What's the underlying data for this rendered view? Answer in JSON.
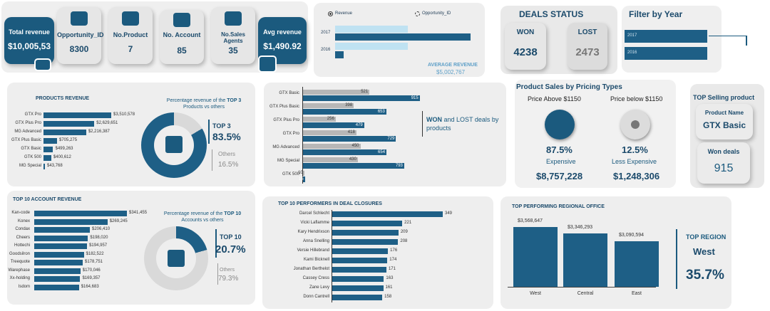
{
  "kpis": {
    "total_revenue": {
      "label": "Total revenue",
      "value": "$10,005,53"
    },
    "opportunity_id": {
      "label": "Opportunity_ID",
      "value": "8300"
    },
    "no_product": {
      "label": "No.Product",
      "value": "7"
    },
    "no_account": {
      "label": "No. Account",
      "value": "85"
    },
    "no_sales_agents": {
      "label": "No.Sales Agents",
      "value": "35"
    },
    "avg_revenue": {
      "label": "Avg  revenue",
      "value": "$1,490.92"
    }
  },
  "year_chart": {
    "legend_revenue": "Revenue",
    "legend_opportunity": "Opportunity_ID",
    "years": [
      "2017",
      "2016"
    ],
    "avg_label": "AVERAGE REVENUE",
    "avg_value": "$5,002,767"
  },
  "deals_status": {
    "title": "DEALS STATUS",
    "won_label": "WON",
    "won_value": "4238",
    "lost_label": "LOST",
    "lost_value": "2473"
  },
  "filter": {
    "title": "Filter by Year",
    "items": [
      "2017",
      "2016"
    ]
  },
  "products_revenue": {
    "title": "PRODUCTS REVENUE",
    "rows": [
      {
        "name": "GTX Pro",
        "value": "$3,510,578",
        "frac": 1.0
      },
      {
        "name": "GTX Plus Pro",
        "value": "$2,629,651",
        "frac": 0.75
      },
      {
        "name": "MG Advanced",
        "value": "$2,216,387",
        "frac": 0.63
      },
      {
        "name": "GTX Plus Basic",
        "value": "$705,275",
        "frac": 0.2
      },
      {
        "name": "GTX Basic",
        "value": "$499,263",
        "frac": 0.142
      },
      {
        "name": "GTK 500",
        "value": "$400,612",
        "frac": 0.114
      },
      {
        "name": "MG Special",
        "value": "$43,768",
        "frac": 0.012
      }
    ],
    "pct_title_pre": "Percentage revenue of the ",
    "pct_title_bold": "TOP 3",
    "pct_title_post": " Products vs others",
    "top_label": "TOP 3",
    "top_value": "83.5%",
    "others_label": "Others",
    "others_value": "16.5%",
    "top_fraction": 0.835
  },
  "won_lost": {
    "title_bold": "WON",
    "title_rest": " and LOST deals by products",
    "rows": [
      {
        "name": "GTX Basic",
        "lost": 521,
        "won": 915
      },
      {
        "name": "GTX Plus Basic",
        "lost": 398,
        "won": 653
      },
      {
        "name": "GTX Plus Pro",
        "lost": 256,
        "won": 479
      },
      {
        "name": "GTX Pro",
        "lost": 418,
        "won": 729
      },
      {
        "name": "MG Advanced",
        "lost": 450,
        "won": 654
      },
      {
        "name": "MG Special",
        "lost": 430,
        "won": 793
      },
      {
        "name": "GTK 500",
        "lost": 10,
        "won": 15
      }
    ],
    "max": 950
  },
  "pricing": {
    "title": "Product Sales by Pricing Types",
    "above_label": "Price Above $1150",
    "below_label": "Price below $1150",
    "above_pct": "87.5%",
    "above_name": "Expensive",
    "above_value": "$8,757,228",
    "below_pct": "12.5%",
    "below_name": "Less Expensive",
    "below_value": "$1,248,306"
  },
  "top_selling": {
    "title": "TOP Selling product",
    "product_label": "Product Name",
    "product_value": "GTX Basic",
    "won_label": "Won deals",
    "won_value": "915"
  },
  "accounts": {
    "title": "TOP 10 ACCOUNT REVENUE",
    "rows": [
      {
        "name": "Kan-code",
        "value": "$341,455",
        "frac": 1.0
      },
      {
        "name": "Konex",
        "value": "$269,245",
        "frac": 0.79
      },
      {
        "name": "Condax",
        "value": "$206,410",
        "frac": 0.6
      },
      {
        "name": "Cheers",
        "value": "$198,020",
        "frac": 0.58
      },
      {
        "name": "Hottechi",
        "value": "$194,957",
        "frac": 0.57
      },
      {
        "name": "Goodsilron",
        "value": "$182,522",
        "frac": 0.535
      },
      {
        "name": "Treequote",
        "value": "$178,751",
        "frac": 0.523
      },
      {
        "name": "Warephase",
        "value": "$170,046",
        "frac": 0.498
      },
      {
        "name": "Xx-holding",
        "value": "$169,357",
        "frac": 0.496
      },
      {
        "name": "Isdom",
        "value": "$164,683",
        "frac": 0.482
      }
    ],
    "pct_title_pre": "Percentage revenue of the ",
    "pct_title_bold": "TOP 10",
    "pct_title_post": " Accounts vs others",
    "top_label": "TOP 10",
    "top_value": "20.7%",
    "others_label": "Others",
    "others_value": "79.3%",
    "top_fraction": 0.207
  },
  "performers": {
    "title": "TOP 10 PERFORMERS IN DEAL CLOSURES",
    "rows": [
      {
        "name": "Darcel Schlecht",
        "value": "349"
      },
      {
        "name": "Vicki Laflamme",
        "value": "221"
      },
      {
        "name": "Kary Hendrixson",
        "value": "209"
      },
      {
        "name": "Anna Snelling",
        "value": "208"
      },
      {
        "name": "Versie Hillebrand",
        "value": "176"
      },
      {
        "name": "Kami Bicknell",
        "value": "174"
      },
      {
        "name": "Jonathan Berthelot",
        "value": "171"
      },
      {
        "name": "Cassey Cress",
        "value": "163"
      },
      {
        "name": "Zane Levy",
        "value": "161"
      },
      {
        "name": "Donn Cantrell",
        "value": "158"
      }
    ],
    "max": 349
  },
  "regional": {
    "title": "TOP PERFORMING REGIONAL OFFICE",
    "bars": [
      {
        "name": "West",
        "value": "$3,568,647",
        "num": 3568647
      },
      {
        "name": "Central",
        "value": "$3,346,293",
        "num": 3346293
      },
      {
        "name": "East",
        "value": "$3,090,594",
        "num": 3090594
      }
    ],
    "top_label_pre": "TOP ",
    "top_label_bold": "REGION",
    "top_name": "West",
    "top_pct": "35.7%"
  }
}
